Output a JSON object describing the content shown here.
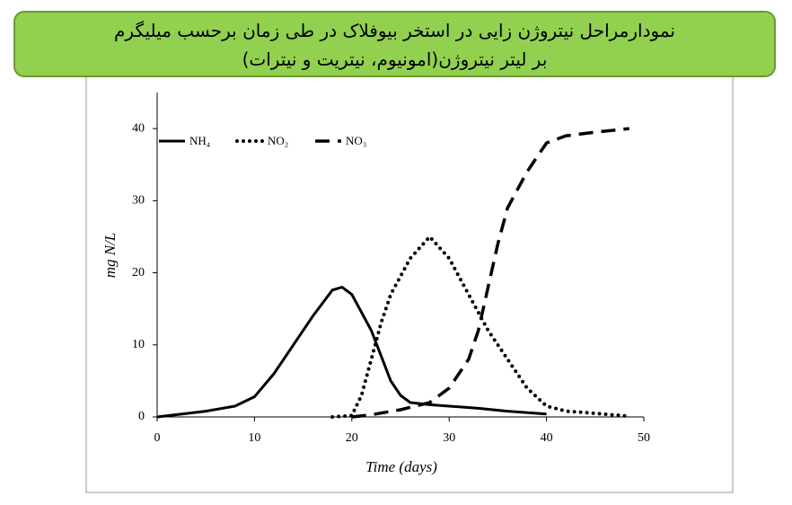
{
  "slide": {
    "title_lines": [
      "نمودارمراحل نیتروژن زایی در استخر بیوفلاک در طی زمان برحسب میلیگرم",
      "بر لیتر نیتروژن(امونیوم، نیتریت و نیترات)"
    ]
  },
  "chart_data": {
    "type": "line",
    "x_label": "Time (days)",
    "y_label": "mg N/L",
    "xlim": [
      0,
      50
    ],
    "xticks": [
      0,
      10,
      20,
      30,
      40,
      50
    ],
    "ylim": [
      0,
      45
    ],
    "yticks": [
      0,
      10,
      20,
      30,
      40
    ],
    "grid": false,
    "legend": "top-left",
    "series": [
      {
        "name": "NH₄",
        "color": "#000000",
        "style": "solid",
        "x": [
          0,
          5,
          8,
          10,
          12,
          14,
          16,
          18,
          19,
          20,
          22,
          24,
          25,
          26,
          28,
          30,
          33,
          36,
          40
        ],
        "values": [
          0,
          0.8,
          1.5,
          2.8,
          6,
          10,
          14,
          17.6,
          18,
          17,
          12,
          5,
          3,
          2,
          1.7,
          1.5,
          1.2,
          0.8,
          0.4
        ]
      },
      {
        "name": "NO₂",
        "color": "#000000",
        "style": "dotted",
        "x": [
          18,
          20,
          21,
          22,
          23,
          24,
          26,
          28,
          30,
          32,
          34,
          36,
          38,
          40,
          42,
          45,
          48.5
        ],
        "values": [
          0,
          0.2,
          3,
          8,
          13,
          17,
          22,
          25,
          22,
          17,
          12,
          8,
          4,
          1.5,
          0.8,
          0.5,
          0.1
        ]
      },
      {
        "name": "NO₃",
        "color": "#000000",
        "style": "dashed",
        "x": [
          20,
          22,
          25,
          28,
          30,
          32,
          33,
          34,
          35,
          36,
          38,
          40,
          42,
          45,
          48.5
        ],
        "values": [
          0,
          0.3,
          1,
          2,
          4,
          8,
          12,
          18,
          24,
          29,
          34,
          38,
          39,
          39.5,
          40
        ]
      }
    ]
  }
}
